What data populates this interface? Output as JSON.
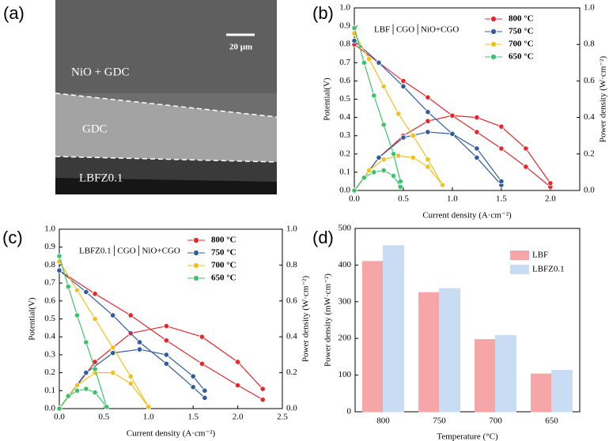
{
  "image_panel": {
    "label": "(a)",
    "layers": [
      "NiO + GDC",
      "GDC",
      "LBFZ0.1"
    ],
    "scale_bar": "20 μm"
  },
  "chart_data": [
    {
      "type": "line",
      "panel_label": "(b)",
      "annotation": "LBF│CGO│NiO+CGO",
      "x_label": "Current density (A·cm⁻²)",
      "y_label": "Potential(V)",
      "y2_label": "Power density (W·cm⁻²)",
      "xlim": [
        0,
        2.3
      ],
      "ylim": [
        0,
        1.0
      ],
      "y2lim": [
        0,
        1.0
      ],
      "xticks": [
        {
          "value": 0,
          "label": "0.0"
        },
        0.5,
        {
          "value": 1,
          "label": "1.0"
        },
        1.5,
        {
          "value": 2,
          "label": "2.0"
        }
      ],
      "yticks": [
        {
          "value": 0,
          "label": "0.0"
        },
        0.1,
        0.2,
        0.3,
        0.4,
        0.5,
        0.6,
        0.7,
        0.8,
        0.9,
        {
          "value": 1,
          "label": "1.0"
        }
      ],
      "y2ticks": [
        {
          "value": 0,
          "label": "0.0"
        },
        0.2,
        0.4,
        0.6,
        0.8,
        {
          "value": 1,
          "label": "1.0"
        }
      ],
      "legend": "upper right",
      "series": [
        {
          "name": "800 °C",
          "color": "#e8262a",
          "x": [
            0,
            0.25,
            0.5,
            0.75,
            1.0,
            1.25,
            1.5,
            1.75,
            2.0
          ],
          "values": [
            0.8,
            0.7,
            0.6,
            0.51,
            0.41,
            0.32,
            0.23,
            0.13,
            0.02
          ],
          "power": [
            0,
            0.18,
            0.3,
            0.38,
            0.41,
            0.4,
            0.35,
            0.23,
            0.04
          ]
        },
        {
          "name": "750 °C",
          "color": "#2e5c9e",
          "x": [
            0,
            0.25,
            0.5,
            0.75,
            1.0,
            1.25,
            1.5
          ],
          "values": [
            0.82,
            0.7,
            0.57,
            0.43,
            0.31,
            0.18,
            0.03
          ],
          "power": [
            0,
            0.18,
            0.29,
            0.32,
            0.31,
            0.23,
            0.05
          ]
        },
        {
          "name": "700 °C",
          "color": "#f2c019",
          "x": [
            0,
            0.15,
            0.3,
            0.45,
            0.6,
            0.75,
            0.9
          ],
          "values": [
            0.86,
            0.72,
            0.57,
            0.42,
            0.3,
            0.17,
            0.03
          ],
          "power": [
            0,
            0.11,
            0.17,
            0.19,
            0.18,
            0.13,
            0.03
          ]
        },
        {
          "name": "650 °C",
          "color": "#3cc36a",
          "x": [
            0,
            0.1,
            0.2,
            0.3,
            0.4,
            0.47
          ],
          "values": [
            0.89,
            0.7,
            0.52,
            0.36,
            0.2,
            0.05
          ],
          "power": [
            0,
            0.07,
            0.1,
            0.11,
            0.08,
            0.02
          ]
        }
      ]
    },
    {
      "type": "line",
      "panel_label": "(c)",
      "annotation": "LBFZ0.1│CGO│NiO+CGO",
      "x_label": "Current density (A·cm⁻²)",
      "y_label": "Potential(V)",
      "y2_label": "Power density (W·cm⁻²)",
      "xlim": [
        0,
        2.5
      ],
      "ylim": [
        0,
        1.0
      ],
      "y2lim": [
        0,
        1.0
      ],
      "xticks": [
        {
          "value": 0,
          "label": "0.0"
        },
        0.5,
        {
          "value": 1,
          "label": "1.0"
        },
        1.5,
        {
          "value": 2,
          "label": "2.0"
        },
        2.5
      ],
      "yticks": [
        {
          "value": 0,
          "label": "0.0"
        },
        0.1,
        0.2,
        0.3,
        0.4,
        0.5,
        0.6,
        0.7,
        0.8,
        0.9,
        {
          "value": 1,
          "label": "1.0"
        }
      ],
      "y2ticks": [
        {
          "value": 0,
          "label": "0.0"
        },
        0.2,
        0.4,
        0.6,
        0.8,
        {
          "value": 1,
          "label": "1.0"
        }
      ],
      "legend": "upper right",
      "series": [
        {
          "name": "800 °C",
          "color": "#e8262a",
          "x": [
            0,
            0.4,
            0.8,
            1.2,
            1.6,
            2.0,
            2.28
          ],
          "values": [
            0.77,
            0.64,
            0.52,
            0.38,
            0.25,
            0.13,
            0.05
          ],
          "power": [
            0,
            0.26,
            0.42,
            0.46,
            0.4,
            0.26,
            0.11
          ]
        },
        {
          "name": "750 °C",
          "color": "#2e5c9e",
          "x": [
            0,
            0.3,
            0.6,
            0.9,
            1.2,
            1.5,
            1.63
          ],
          "values": [
            0.77,
            0.65,
            0.52,
            0.37,
            0.25,
            0.12,
            0.06
          ],
          "power": [
            0,
            0.2,
            0.31,
            0.33,
            0.3,
            0.18,
            0.1
          ]
        },
        {
          "name": "700 °C",
          "color": "#f2c019",
          "x": [
            0,
            0.2,
            0.4,
            0.6,
            0.8,
            1.0
          ],
          "values": [
            0.82,
            0.66,
            0.5,
            0.34,
            0.18,
            0.01
          ],
          "power": [
            0,
            0.13,
            0.2,
            0.2,
            0.14,
            0.01
          ]
        },
        {
          "name": "650 °C",
          "color": "#3cc36a",
          "x": [
            0,
            0.1,
            0.2,
            0.3,
            0.4,
            0.53
          ],
          "values": [
            0.85,
            0.68,
            0.52,
            0.37,
            0.22,
            0.01
          ],
          "power": [
            0,
            0.07,
            0.1,
            0.11,
            0.09,
            0.01
          ]
        }
      ]
    },
    {
      "type": "bar",
      "panel_label": "(d)",
      "x_label": "Temperature (°C)",
      "y_label": "Power density (mW·cm⁻²)",
      "categories": [
        "800",
        "750",
        "700",
        "650"
      ],
      "ylim": [
        0,
        500
      ],
      "yticks": [
        0,
        100,
        200,
        300,
        400,
        500
      ],
      "legend": "upper right",
      "series": [
        {
          "name": "LBF",
          "color": "#f6a6a6",
          "values": [
            410,
            325,
            197,
            103
          ]
        },
        {
          "name": "LBFZ0.1",
          "color": "#c8dcf3",
          "values": [
            453,
            336,
            208,
            113
          ]
        }
      ]
    }
  ]
}
